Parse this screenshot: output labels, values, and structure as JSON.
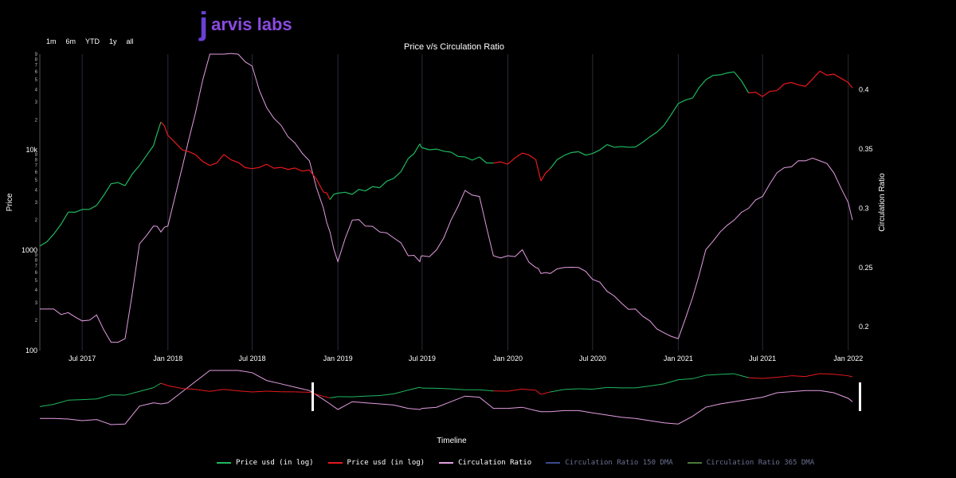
{
  "brand": {
    "logo_letter": "j",
    "logo_text": "arvis labs"
  },
  "range_selector": [
    "1m",
    "6m",
    "YTD",
    "1y",
    "all"
  ],
  "colors": {
    "bull": "#1fb85e",
    "bear": "#e8191c",
    "ratio": "#e29de0",
    "ratio150": "#3a4a8a",
    "ratio365": "#4a7a3a"
  },
  "chart_data": {
    "type": "line",
    "title": "Price v/s Circulation Ratio",
    "xlabel": "Timeline",
    "ylabel_left": "Price",
    "ylabel_right": "Circulation Ratio",
    "y_left_scale": "log",
    "y_left_range": [
      100,
      90000
    ],
    "y_right_range": [
      0.18,
      0.43
    ],
    "x_range": [
      "2017-04-01",
      "2022-01-10"
    ],
    "x_tick_labels": [
      "Jul 2017",
      "Jan 2018",
      "Jul 2018",
      "Jan 2019",
      "Jul 2019",
      "Jan 2020",
      "Jul 2020",
      "Jan 2021",
      "Jul 2021",
      "Jan 2022"
    ],
    "y_left_tick_labels": [
      "100",
      "1000",
      "10k"
    ],
    "y_right_tick_labels": [
      "0.2",
      "0.25",
      "0.3",
      "0.35",
      "0.4"
    ],
    "x_dates": [
      "2017-04-01",
      "2017-05-01",
      "2017-06-01",
      "2017-07-01",
      "2017-08-01",
      "2017-09-01",
      "2017-10-01",
      "2017-11-01",
      "2017-12-01",
      "2017-12-17",
      "2018-01-01",
      "2018-02-01",
      "2018-03-01",
      "2018-04-01",
      "2018-05-01",
      "2018-06-01",
      "2018-07-01",
      "2018-08-01",
      "2018-09-01",
      "2018-10-01",
      "2018-11-01",
      "2018-12-01",
      "2018-12-15",
      "2019-01-01",
      "2019-02-01",
      "2019-03-01",
      "2019-04-01",
      "2019-05-01",
      "2019-06-01",
      "2019-06-26",
      "2019-07-01",
      "2019-08-01",
      "2019-09-01",
      "2019-10-01",
      "2019-11-01",
      "2019-12-01",
      "2020-01-01",
      "2020-02-01",
      "2020-03-01",
      "2020-03-12",
      "2020-04-01",
      "2020-05-01",
      "2020-06-01",
      "2020-07-01",
      "2020-08-01",
      "2020-09-01",
      "2020-10-01",
      "2020-11-01",
      "2020-12-01",
      "2021-01-01",
      "2021-02-01",
      "2021-03-01",
      "2021-04-01",
      "2021-05-01",
      "2021-06-01",
      "2021-07-01",
      "2021-08-01",
      "2021-09-01",
      "2021-10-01",
      "2021-11-01",
      "2021-12-01",
      "2022-01-01",
      "2022-01-10"
    ],
    "series": [
      {
        "name": "Price usd (in log)",
        "role": "price",
        "values": [
          1100,
          1450,
          2400,
          2550,
          2800,
          4600,
          4400,
          7000,
          11000,
          19000,
          14000,
          10000,
          9000,
          7000,
          9000,
          7500,
          6500,
          7200,
          6700,
          6600,
          6300,
          3800,
          3200,
          3700,
          3600,
          3900,
          4200,
          5200,
          8200,
          11500,
          10500,
          10200,
          9500,
          8500,
          8500,
          7400,
          7200,
          9300,
          8000,
          4900,
          6500,
          8800,
          9600,
          9200,
          11300,
          10800,
          10700,
          13500,
          17500,
          29000,
          33000,
          50000,
          56000,
          60000,
          37000,
          34000,
          39000,
          47000,
          43000,
          61000,
          57000,
          47000,
          41500
        ],
        "regime": [
          "up",
          "up",
          "up",
          "up",
          "up",
          "up",
          "up",
          "up",
          "up",
          "down",
          "down",
          "down",
          "down",
          "down",
          "down",
          "down",
          "down",
          "down",
          "down",
          "down",
          "down",
          "down",
          "up",
          "up",
          "up",
          "up",
          "up",
          "up",
          "up",
          "up",
          "up",
          "up",
          "up",
          "up",
          "up",
          "down",
          "down",
          "down",
          "down",
          "down",
          "up",
          "up",
          "up",
          "up",
          "up",
          "up",
          "up",
          "up",
          "up",
          "up",
          "up",
          "up",
          "up",
          "up",
          "down",
          "down",
          "down",
          "down",
          "down",
          "down",
          "down",
          "down",
          "down"
        ]
      },
      {
        "name": "Price usd (in log)",
        "role": "price_bear_legend"
      },
      {
        "name": "Circulation Ratio",
        "role": "ratio",
        "values": [
          0.215,
          0.215,
          0.212,
          0.205,
          0.21,
          0.187,
          0.19,
          0.27,
          0.285,
          0.28,
          0.285,
          0.335,
          0.38,
          0.43,
          0.43,
          0.43,
          0.42,
          0.385,
          0.37,
          0.355,
          0.34,
          0.3,
          0.28,
          0.255,
          0.29,
          0.285,
          0.28,
          0.275,
          0.26,
          0.255,
          0.26,
          0.265,
          0.29,
          0.315,
          0.31,
          0.26,
          0.26,
          0.265,
          0.25,
          0.245,
          0.245,
          0.25,
          0.25,
          0.24,
          0.23,
          0.22,
          0.215,
          0.205,
          0.195,
          0.19,
          0.225,
          0.265,
          0.28,
          0.29,
          0.3,
          0.31,
          0.33,
          0.335,
          0.34,
          0.34,
          0.33,
          0.305,
          0.29
        ]
      },
      {
        "name": "Circulation Ratio 150 DMA",
        "role": "legend_only"
      },
      {
        "name": "Circulation Ratio 365 DMA",
        "role": "legend_only"
      }
    ]
  }
}
